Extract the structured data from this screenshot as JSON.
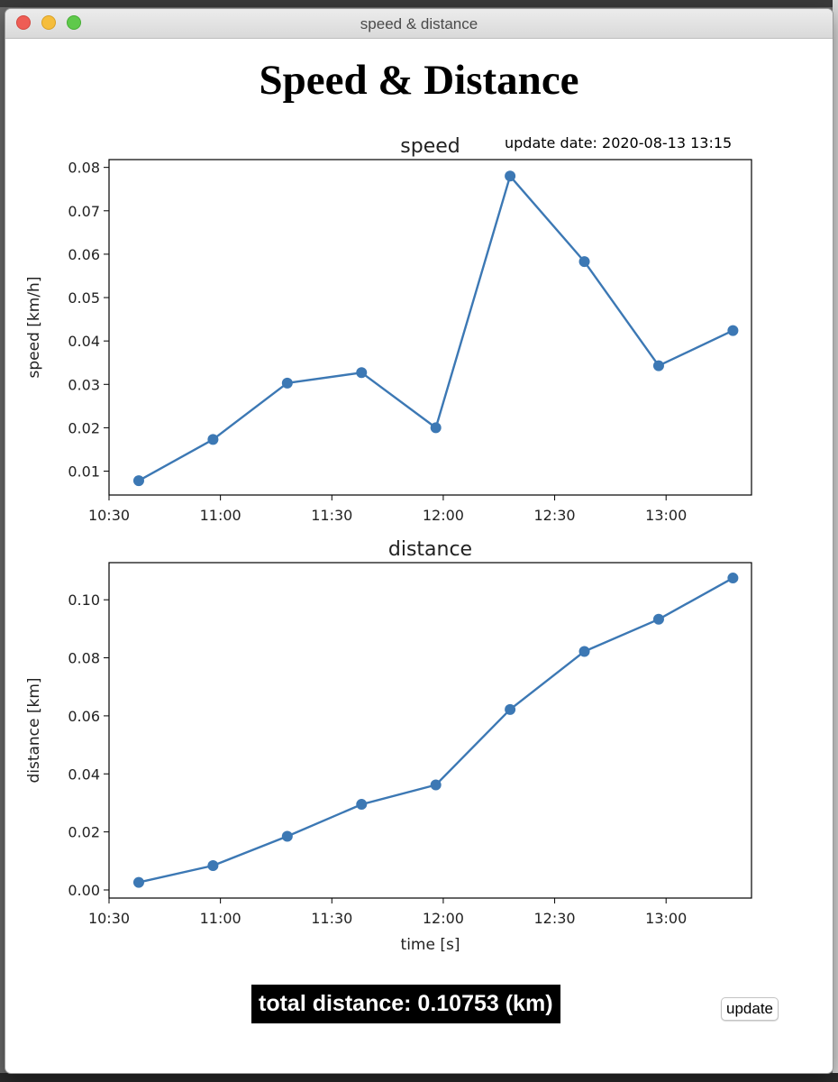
{
  "window": {
    "title": "speed & distance"
  },
  "page": {
    "title": "Speed & Distance"
  },
  "update_date": "update date: 2020-08-13 13:15",
  "total_distance": "total distance: 0.10753 (km)",
  "update_button": "update",
  "colors": {
    "line": "#3c78b4",
    "accent": "#000000"
  },
  "chart_data": [
    {
      "type": "line",
      "title": "speed",
      "xlabel": "",
      "ylabel": "speed [km/h]",
      "x": [
        "10:38",
        "10:58",
        "11:18",
        "11:38",
        "11:58",
        "12:18",
        "12:38",
        "12:58",
        "13:18"
      ],
      "values": [
        0.0078,
        0.0173,
        0.0303,
        0.0327,
        0.02,
        0.078,
        0.0583,
        0.0343,
        0.0424
      ],
      "xticks": [
        "10:30",
        "11:00",
        "11:30",
        "12:00",
        "12:30",
        "13:00"
      ],
      "yticks": [
        "0.01",
        "0.02",
        "0.03",
        "0.04",
        "0.05",
        "0.06",
        "0.07",
        "0.08"
      ],
      "xlim": [
        "10:30",
        "13:23"
      ],
      "ylim": [
        0.0045,
        0.0818
      ],
      "grid": false,
      "markers": true
    },
    {
      "type": "line",
      "title": "distance",
      "xlabel": "time [s]",
      "ylabel": "distance [km]",
      "x": [
        "10:38",
        "10:58",
        "11:18",
        "11:38",
        "11:58",
        "12:18",
        "12:38",
        "12:58",
        "13:18"
      ],
      "values": [
        0.0026,
        0.0084,
        0.0185,
        0.0295,
        0.0362,
        0.0622,
        0.0822,
        0.0933,
        0.1075
      ],
      "xticks": [
        "10:30",
        "11:00",
        "11:30",
        "12:00",
        "12:30",
        "13:00"
      ],
      "yticks": [
        "0.00",
        "0.02",
        "0.04",
        "0.06",
        "0.08",
        "0.10"
      ],
      "xlim": [
        "10:30",
        "13:23"
      ],
      "ylim": [
        -0.0028,
        0.1128
      ],
      "grid": false,
      "markers": true
    }
  ]
}
